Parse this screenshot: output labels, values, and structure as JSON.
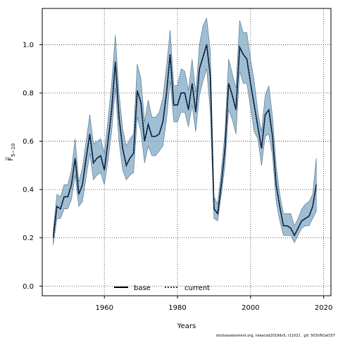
{
  "chart_data": {
    "type": "line",
    "xlabel": "Years",
    "ylabel": "F̅",
    "ylabel_sub": "5−10",
    "xlim": [
      1943,
      2022
    ],
    "ylim": [
      -0.04,
      1.15
    ],
    "xticks": [
      1960,
      1980,
      2000,
      2020
    ],
    "yticks": [
      0.0,
      0.2,
      0.4,
      0.6,
      0.8,
      1.0
    ],
    "ytick_labels": [
      "0.0",
      "0.2",
      "0.4",
      "0.6",
      "0.8",
      "1.0"
    ],
    "xtick_labels": [
      "1960",
      "1980",
      "2000",
      "2020"
    ],
    "grid": true,
    "legend_position": "bottom-center",
    "colors": {
      "band": "#7fa8c4",
      "band_edge": "#4d6f86",
      "base": "#000000",
      "current": "#1f3f7a"
    },
    "x": [
      1946,
      1947,
      1948,
      1949,
      1950,
      1951,
      1952,
      1953,
      1954,
      1955,
      1956,
      1957,
      1958,
      1959,
      1960,
      1961,
      1962,
      1963,
      1964,
      1965,
      1966,
      1967,
      1968,
      1969,
      1970,
      1971,
      1972,
      1973,
      1974,
      1975,
      1976,
      1977,
      1978,
      1979,
      1980,
      1981,
      1982,
      1983,
      1984,
      1985,
      1986,
      1987,
      1988,
      1989,
      1990,
      1991,
      1992,
      1993,
      1994,
      1995,
      1996,
      1997,
      1998,
      1999,
      2000,
      2001,
      2002,
      2003,
      2004,
      2005,
      2006,
      2007,
      2008,
      2009,
      2010,
      2011,
      2012,
      2013,
      2014,
      2015,
      2016,
      2017,
      2018
    ],
    "series": [
      {
        "name": "base",
        "values": [
          0.2,
          0.33,
          0.32,
          0.37,
          0.37,
          0.42,
          0.53,
          0.38,
          0.42,
          0.53,
          0.63,
          0.51,
          0.53,
          0.54,
          0.48,
          0.6,
          0.73,
          0.93,
          0.7,
          0.57,
          0.5,
          0.53,
          0.55,
          0.81,
          0.76,
          0.6,
          0.67,
          0.62,
          0.62,
          0.63,
          0.68,
          0.8,
          0.96,
          0.75,
          0.75,
          0.8,
          0.8,
          0.73,
          0.84,
          0.72,
          0.9,
          0.95,
          1.0,
          0.87,
          0.32,
          0.3,
          0.42,
          0.57,
          0.84,
          0.79,
          0.73,
          0.99,
          0.96,
          0.94,
          0.84,
          0.75,
          0.66,
          0.57,
          0.71,
          0.73,
          0.62,
          0.42,
          0.33,
          0.25,
          0.25,
          0.24,
          0.21,
          0.24,
          0.27,
          0.28,
          0.29,
          0.33,
          0.42
        ]
      },
      {
        "name": "current",
        "values": [
          0.2,
          0.33,
          0.32,
          0.37,
          0.37,
          0.42,
          0.53,
          0.38,
          0.42,
          0.53,
          0.63,
          0.51,
          0.53,
          0.54,
          0.48,
          0.6,
          0.73,
          0.93,
          0.7,
          0.57,
          0.5,
          0.53,
          0.55,
          0.81,
          0.76,
          0.6,
          0.67,
          0.62,
          0.62,
          0.63,
          0.68,
          0.8,
          0.96,
          0.75,
          0.75,
          0.8,
          0.8,
          0.73,
          0.84,
          0.72,
          0.9,
          0.95,
          1.0,
          0.87,
          0.32,
          0.3,
          0.42,
          0.57,
          0.84,
          0.79,
          0.73,
          0.99,
          0.96,
          0.94,
          0.84,
          0.75,
          0.66,
          0.57,
          0.71,
          0.73,
          0.62,
          0.42,
          0.33,
          0.25,
          0.25,
          0.24,
          0.21,
          0.24,
          0.27,
          0.28,
          0.29,
          0.33,
          0.42
        ]
      }
    ],
    "band_lower": [
      0.17,
      0.28,
      0.28,
      0.32,
      0.32,
      0.36,
      0.46,
      0.33,
      0.35,
      0.45,
      0.55,
      0.44,
      0.46,
      0.47,
      0.42,
      0.52,
      0.64,
      0.82,
      0.6,
      0.48,
      0.44,
      0.46,
      0.47,
      0.7,
      0.64,
      0.51,
      0.58,
      0.54,
      0.54,
      0.56,
      0.58,
      0.69,
      0.85,
      0.68,
      0.68,
      0.72,
      0.72,
      0.66,
      0.75,
      0.64,
      0.79,
      0.85,
      0.9,
      0.72,
      0.28,
      0.27,
      0.38,
      0.5,
      0.73,
      0.69,
      0.63,
      0.89,
      0.84,
      0.84,
      0.74,
      0.64,
      0.61,
      0.5,
      0.62,
      0.63,
      0.54,
      0.35,
      0.27,
      0.21,
      0.21,
      0.21,
      0.18,
      0.21,
      0.24,
      0.25,
      0.25,
      0.28,
      0.31
    ],
    "band_upper": [
      0.23,
      0.38,
      0.37,
      0.42,
      0.42,
      0.48,
      0.61,
      0.43,
      0.49,
      0.6,
      0.71,
      0.59,
      0.6,
      0.61,
      0.55,
      0.69,
      0.84,
      1.04,
      0.8,
      0.65,
      0.58,
      0.61,
      0.63,
      0.92,
      0.86,
      0.68,
      0.77,
      0.7,
      0.7,
      0.72,
      0.78,
      0.91,
      1.06,
      0.83,
      0.83,
      0.9,
      0.89,
      0.81,
      0.94,
      0.8,
      1.0,
      1.08,
      1.11,
      0.97,
      0.37,
      0.34,
      0.48,
      0.64,
      0.94,
      0.88,
      0.82,
      1.1,
      1.05,
      1.05,
      0.94,
      0.85,
      0.72,
      0.64,
      0.79,
      0.83,
      0.7,
      0.5,
      0.38,
      0.3,
      0.3,
      0.3,
      0.25,
      0.28,
      0.32,
      0.34,
      0.35,
      0.38,
      0.53
    ]
  },
  "legend": {
    "base_label": "base",
    "current_label": "current"
  },
  "footer_text": "stockassessment.org,  nseacod2019dv5,  r11021 ,  git:  503cf91af157"
}
